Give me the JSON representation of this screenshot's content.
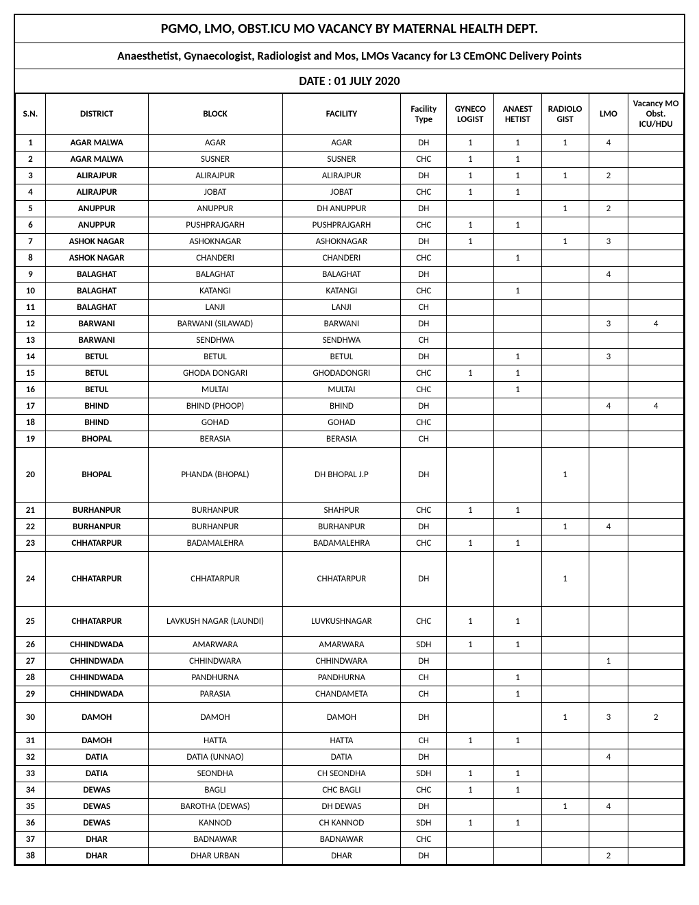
{
  "title": "PGMO, LMO, OBST.ICU MO VACANCY BY MATERNAL HEALTH DEPT.",
  "subtitle": "Anaesthetist, Gynaecologist, Radiologist  and Mos, LMOs Vacancy for L3 CEmONC Delivery Points",
  "date_line": "DATE : 01 JULY 2020",
  "columns": {
    "sn": "S.N.",
    "district": "DISTRICT",
    "block": "BLOCK",
    "facility": "FACILITY",
    "facility_type": "Facility Type",
    "gyneco": "GYNECO LOGIST",
    "anaest": "ANAEST HETIST",
    "radiolo": "RADIOLO GIST",
    "lmo": "LMO",
    "vacancy": "Vacancy MO Obst. ICU/HDU"
  },
  "rows": [
    {
      "sn": "1",
      "district": "AGAR MALWA",
      "block": "AGAR",
      "facility": "AGAR",
      "ftype": "DH",
      "gyneco": "1",
      "anaest": "1",
      "radiolo": "1",
      "lmo": "4",
      "vac": ""
    },
    {
      "sn": "2",
      "district": "AGAR MALWA",
      "block": "SUSNER",
      "facility": "SUSNER",
      "ftype": "CHC",
      "gyneco": "1",
      "anaest": "1",
      "radiolo": "",
      "lmo": "",
      "vac": ""
    },
    {
      "sn": "3",
      "district": "ALIRAJPUR",
      "block": "ALIRAJPUR",
      "facility": "ALIRAJPUR",
      "ftype": "DH",
      "gyneco": "1",
      "anaest": "1",
      "radiolo": "1",
      "lmo": "2",
      "vac": ""
    },
    {
      "sn": "4",
      "district": "ALIRAJPUR",
      "block": "JOBAT",
      "facility": "JOBAT",
      "ftype": "CHC",
      "gyneco": "1",
      "anaest": "1",
      "radiolo": "",
      "lmo": "",
      "vac": ""
    },
    {
      "sn": "5",
      "district": "ANUPPUR",
      "block": "ANUPPUR",
      "facility": "DH ANUPPUR",
      "ftype": "DH",
      "gyneco": "",
      "anaest": "",
      "radiolo": "1",
      "lmo": "2",
      "vac": ""
    },
    {
      "sn": "6",
      "district": "ANUPPUR",
      "block": "PUSHPRAJGARH",
      "facility": "PUSHPRAJGARH",
      "ftype": "CHC",
      "gyneco": "1",
      "anaest": "1",
      "radiolo": "",
      "lmo": "",
      "vac": ""
    },
    {
      "sn": "7",
      "district": "ASHOK NAGAR",
      "block": "ASHOKNAGAR",
      "facility": "ASHOKNAGAR",
      "ftype": "DH",
      "gyneco": "1",
      "anaest": "",
      "radiolo": "1",
      "lmo": "3",
      "vac": ""
    },
    {
      "sn": "8",
      "district": "ASHOK NAGAR",
      "block": "CHANDERI",
      "facility": "CHANDERI",
      "ftype": "CHC",
      "gyneco": "",
      "anaest": "1",
      "radiolo": "",
      "lmo": "",
      "vac": ""
    },
    {
      "sn": "9",
      "district": "BALAGHAT",
      "block": "BALAGHAT",
      "facility": "BALAGHAT",
      "ftype": "DH",
      "gyneco": "",
      "anaest": "",
      "radiolo": "",
      "lmo": "4",
      "vac": ""
    },
    {
      "sn": "10",
      "district": "BALAGHAT",
      "block": "KATANGI",
      "facility": "KATANGI",
      "ftype": "CHC",
      "gyneco": "",
      "anaest": "1",
      "radiolo": "",
      "lmo": "",
      "vac": ""
    },
    {
      "sn": "11",
      "district": "BALAGHAT",
      "block": "LANJI",
      "facility": "LANJI",
      "ftype": "CH",
      "gyneco": "",
      "anaest": "",
      "radiolo": "",
      "lmo": "",
      "vac": ""
    },
    {
      "sn": "12",
      "district": "BARWANI",
      "block": "BARWANI (SILAWAD)",
      "facility": "BARWANI",
      "ftype": "DH",
      "gyneco": "",
      "anaest": "",
      "radiolo": "",
      "lmo": "3",
      "vac": "4"
    },
    {
      "sn": "13",
      "district": "BARWANI",
      "block": "SENDHWA",
      "facility": "SENDHWA",
      "ftype": "CH",
      "gyneco": "",
      "anaest": "",
      "radiolo": "",
      "lmo": "",
      "vac": ""
    },
    {
      "sn": "14",
      "district": "BETUL",
      "block": "BETUL",
      "facility": "BETUL",
      "ftype": "DH",
      "gyneco": "",
      "anaest": "1",
      "radiolo": "",
      "lmo": "3",
      "vac": ""
    },
    {
      "sn": "15",
      "district": "BETUL",
      "block": "GHODA DONGARI",
      "facility": "GHODADONGRI",
      "ftype": "CHC",
      "gyneco": "1",
      "anaest": "1",
      "radiolo": "",
      "lmo": "",
      "vac": ""
    },
    {
      "sn": "16",
      "district": "BETUL",
      "block": "MULTAI",
      "facility": "MULTAI",
      "ftype": "CHC",
      "gyneco": "",
      "anaest": "1",
      "radiolo": "",
      "lmo": "",
      "vac": ""
    },
    {
      "sn": "17",
      "district": "BHIND",
      "block": "BHIND (PHOOP)",
      "facility": "BHIND",
      "ftype": "DH",
      "gyneco": "",
      "anaest": "",
      "radiolo": "",
      "lmo": "4",
      "vac": "4"
    },
    {
      "sn": "18",
      "district": "BHIND",
      "block": "GOHAD",
      "facility": "GOHAD",
      "ftype": "CHC",
      "gyneco": "",
      "anaest": "",
      "radiolo": "",
      "lmo": "",
      "vac": ""
    },
    {
      "sn": "19",
      "district": "BHOPAL",
      "block": "BERASIA",
      "facility": "BERASIA",
      "ftype": "CH",
      "gyneco": "",
      "anaest": "",
      "radiolo": "",
      "lmo": "",
      "vac": ""
    },
    {
      "sn": "20",
      "district": "BHOPAL",
      "block": "PHANDA (BHOPAL)",
      "facility": "DH BHOPAL J.P",
      "ftype": "DH",
      "gyneco": "",
      "anaest": "",
      "radiolo": "1",
      "lmo": "",
      "vac": "",
      "rowcls": "tall"
    },
    {
      "sn": "21",
      "district": "BURHANPUR",
      "block": "BURHANPUR",
      "facility": "SHAHPUR",
      "ftype": "CHC",
      "gyneco": "1",
      "anaest": "1",
      "radiolo": "",
      "lmo": "",
      "vac": ""
    },
    {
      "sn": "22",
      "district": "BURHANPUR",
      "block": "BURHANPUR",
      "facility": "BURHANPUR",
      "ftype": "DH",
      "gyneco": "",
      "anaest": "",
      "radiolo": "1",
      "lmo": "4",
      "vac": ""
    },
    {
      "sn": "23",
      "district": "CHHATARPUR",
      "block": "BADAMALEHRA",
      "facility": "BADAMALEHRA",
      "ftype": "CHC",
      "gyneco": "1",
      "anaest": "1",
      "radiolo": "",
      "lmo": "",
      "vac": ""
    },
    {
      "sn": "24",
      "district": "CHHATARPUR",
      "block": "CHHATARPUR",
      "facility": "CHHATARPUR",
      "ftype": "DH",
      "gyneco": "",
      "anaest": "",
      "radiolo": "1",
      "lmo": "",
      "vac": "",
      "rowcls": "tall"
    },
    {
      "sn": "25",
      "district": "CHHATARPUR",
      "block": "LAVKUSH NAGAR (LAUNDI)",
      "facility": "LUVKUSHNAGAR",
      "ftype": "CHC",
      "gyneco": "1",
      "anaest": "1",
      "radiolo": "",
      "lmo": "",
      "vac": "",
      "rowcls": "med"
    },
    {
      "sn": "26",
      "district": "CHHINDWADA",
      "block": "AMARWARA",
      "facility": "AMARWARA",
      "ftype": "SDH",
      "gyneco": "1",
      "anaest": "1",
      "radiolo": "",
      "lmo": "",
      "vac": ""
    },
    {
      "sn": "27",
      "district": "CHHINDWADA",
      "block": "CHHINDWARA",
      "facility": "CHHINDWARA",
      "ftype": "DH",
      "gyneco": "",
      "anaest": "",
      "radiolo": "",
      "lmo": "1",
      "vac": ""
    },
    {
      "sn": "28",
      "district": "CHHINDWADA",
      "block": "PANDHURNA",
      "facility": "PANDHURNA",
      "ftype": "CH",
      "gyneco": "",
      "anaest": "1",
      "radiolo": "",
      "lmo": "",
      "vac": ""
    },
    {
      "sn": "29",
      "district": "CHHINDWADA",
      "block": "PARASIA",
      "facility": "CHANDAMETA",
      "ftype": "CH",
      "gyneco": "",
      "anaest": "1",
      "radiolo": "",
      "lmo": "",
      "vac": ""
    },
    {
      "sn": "30",
      "district": "DAMOH",
      "block": "DAMOH",
      "facility": "DAMOH",
      "ftype": "DH",
      "gyneco": "",
      "anaest": "",
      "radiolo": "1",
      "lmo": "3",
      "vac": "2",
      "rowcls": "med"
    },
    {
      "sn": "31",
      "district": "DAMOH",
      "block": "HATTA",
      "facility": "HATTA",
      "ftype": "CH",
      "gyneco": "1",
      "anaest": "1",
      "radiolo": "",
      "lmo": "",
      "vac": ""
    },
    {
      "sn": "32",
      "district": "DATIA",
      "block": "DATIA (UNNAO)",
      "facility": "DATIA",
      "ftype": "DH",
      "gyneco": "",
      "anaest": "",
      "radiolo": "",
      "lmo": "4",
      "vac": ""
    },
    {
      "sn": "33",
      "district": "DATIA",
      "block": "SEONDHA",
      "facility": "CH SEONDHA",
      "ftype": "SDH",
      "gyneco": "1",
      "anaest": "1",
      "radiolo": "",
      "lmo": "",
      "vac": ""
    },
    {
      "sn": "34",
      "district": "DEWAS",
      "block": "BAGLI",
      "facility": "CHC BAGLI",
      "ftype": "CHC",
      "gyneco": "1",
      "anaest": "1",
      "radiolo": "",
      "lmo": "",
      "vac": ""
    },
    {
      "sn": "35",
      "district": "DEWAS",
      "block": "BAROTHA (DEWAS)",
      "facility": "DH DEWAS",
      "ftype": "DH",
      "gyneco": "",
      "anaest": "",
      "radiolo": "1",
      "lmo": "4",
      "vac": ""
    },
    {
      "sn": "36",
      "district": "DEWAS",
      "block": "KANNOD",
      "facility": "CH KANNOD",
      "ftype": "SDH",
      "gyneco": "1",
      "anaest": "1",
      "radiolo": "",
      "lmo": "",
      "vac": ""
    },
    {
      "sn": "37",
      "district": "DHAR",
      "block": "BADNAWAR",
      "facility": "BADNAWAR",
      "ftype": "CHC",
      "gyneco": "",
      "anaest": "",
      "radiolo": "",
      "lmo": "",
      "vac": ""
    },
    {
      "sn": "38",
      "district": "DHAR",
      "block": "DHAR URBAN",
      "facility": "DHAR",
      "ftype": "DH",
      "gyneco": "",
      "anaest": "",
      "radiolo": "",
      "lmo": "2",
      "vac": ""
    }
  ]
}
